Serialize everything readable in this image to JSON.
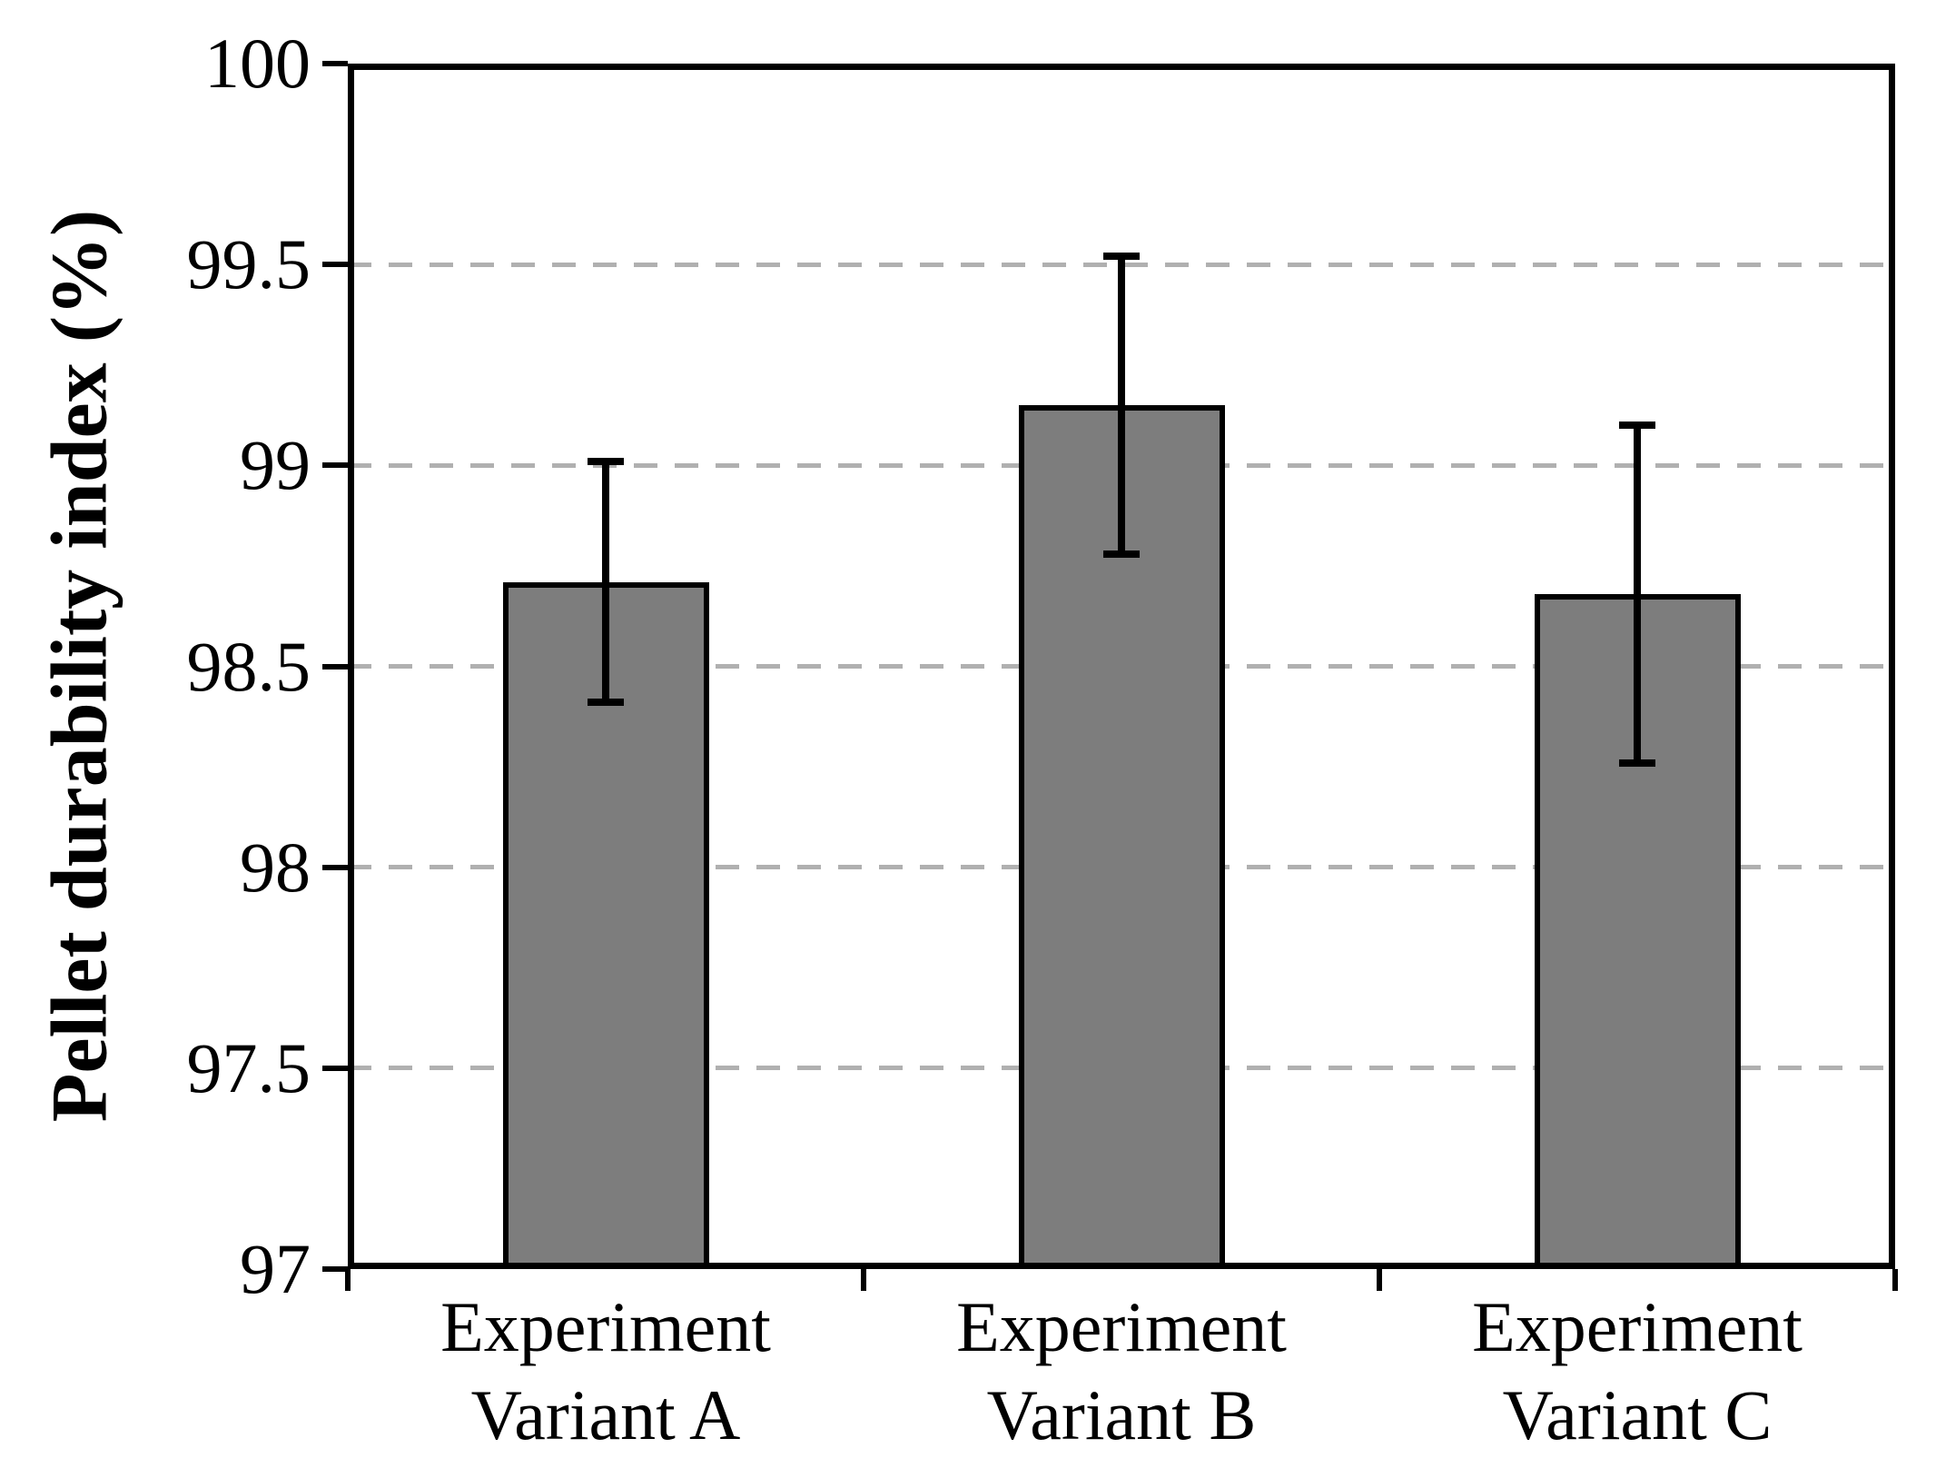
{
  "chart_data": {
    "type": "bar",
    "title": "",
    "xlabel": "",
    "ylabel": "Pellet durability index (%)",
    "categories": [
      "Experiment Variant A",
      "Experiment Variant B",
      "Experiment Variant C"
    ],
    "categories_lines": [
      [
        "Experiment",
        "Variant A"
      ],
      [
        "Experiment",
        "Variant B"
      ],
      [
        "Experiment",
        "Variant C"
      ]
    ],
    "values": [
      98.71,
      99.15,
      98.68
    ],
    "error_upper": [
      99.01,
      99.52,
      99.1
    ],
    "error_lower": [
      98.41,
      98.78,
      98.26
    ],
    "ylim": [
      97,
      100
    ],
    "ytick_values": [
      97,
      97.5,
      98,
      98.5,
      99,
      99.5,
      100
    ],
    "ytick_labels": [
      "97",
      "97.5",
      "98",
      "98.5",
      "99",
      "99.5",
      "100"
    ],
    "gridline_values": [
      97.5,
      98,
      98.5,
      99,
      99.5
    ],
    "grid": "horizontal-dashed",
    "legend": "none",
    "bar_color": "#7d7d7d",
    "bar_border_color": "#000000",
    "gridline_color": "#b0b0b0",
    "axis_color": "#000000"
  }
}
